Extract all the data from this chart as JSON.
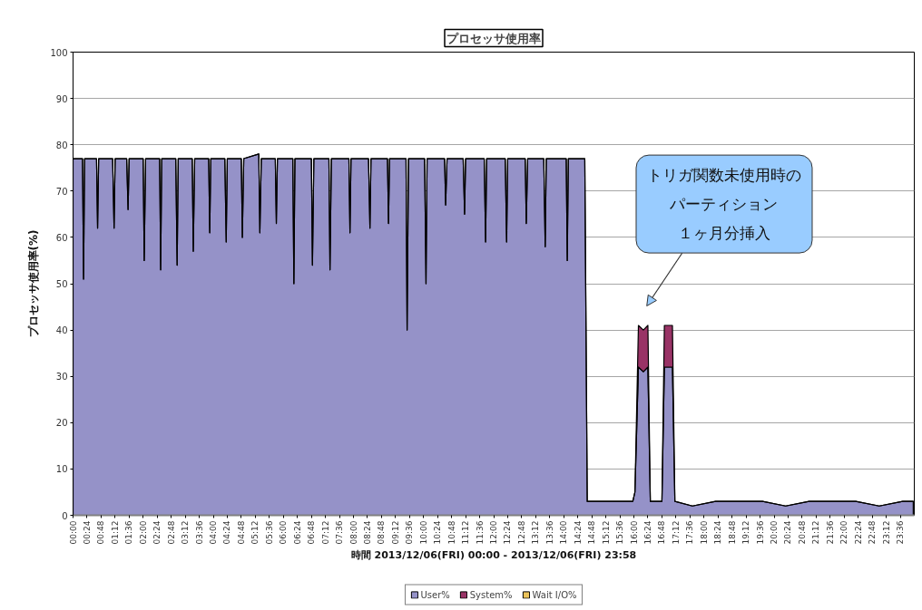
{
  "chart_data": {
    "type": "area",
    "stacked": true,
    "title": "プロセッサ使用率",
    "xlabel": "時間 2013/12/06(FRI) 00:00 - 2013/12/06(FRI) 23:58",
    "ylabel": "プロセッサ使用率(%)",
    "x": [
      0,
      0.27,
      0.3,
      0.33,
      0.67,
      0.7,
      0.73,
      1.13,
      1.17,
      1.2,
      1.53,
      1.57,
      1.6,
      2,
      2.03,
      2.07,
      2.47,
      2.5,
      2.53,
      2.93,
      2.97,
      3,
      3.4,
      3.43,
      3.47,
      3.87,
      3.9,
      3.93,
      4.33,
      4.37,
      4.4,
      4.8,
      4.83,
      4.87,
      5.3,
      5.33,
      5.37,
      5.77,
      5.8,
      5.83,
      6.27,
      6.3,
      6.33,
      6.8,
      6.83,
      6.87,
      7.3,
      7.33,
      7.37,
      7.87,
      7.9,
      7.93,
      8.43,
      8.47,
      8.5,
      8.97,
      9,
      9.03,
      9.5,
      9.53,
      9.57,
      10.03,
      10.07,
      10.1,
      10.6,
      10.63,
      10.67,
      11.13,
      11.17,
      11.2,
      11.73,
      11.77,
      11.8,
      12.33,
      12.37,
      12.4,
      12.9,
      12.93,
      12.97,
      13.43,
      13.47,
      13.5,
      14.07,
      14.1,
      14.13,
      14.6,
      14.67,
      15,
      15.5,
      15.97,
      16.03,
      16.13,
      16.27,
      16.4,
      16.47,
      16.63,
      16.8,
      16.87,
      16.98,
      17.1,
      17.17,
      17.67,
      18.33,
      19,
      19.67,
      20.33,
      21,
      21.67,
      22.33,
      23,
      23.67,
      23.97
    ],
    "series": [
      {
        "name": "User%",
        "color": "#9592c8",
        "values": [
          77,
          77,
          51,
          77,
          77,
          62,
          77,
          77,
          62,
          77,
          77,
          66,
          77,
          77,
          55,
          77,
          77,
          53,
          77,
          77,
          54,
          77,
          77,
          57,
          77,
          77,
          61,
          77,
          77,
          59,
          77,
          77,
          60,
          77,
          78,
          61,
          77,
          77,
          63,
          77,
          77,
          50,
          77,
          77,
          54,
          77,
          77,
          53,
          77,
          77,
          61,
          77,
          77,
          62,
          77,
          77,
          63,
          77,
          77,
          40,
          77,
          77,
          50,
          77,
          77,
          67,
          77,
          77,
          65,
          77,
          77,
          59,
          77,
          77,
          59,
          77,
          77,
          63,
          77,
          77,
          58,
          77,
          77,
          55,
          77,
          77,
          3,
          3,
          3,
          3,
          5,
          32,
          31,
          32,
          3,
          3,
          3,
          32,
          32,
          32,
          3,
          2,
          3,
          3,
          3,
          2,
          3,
          3,
          3,
          2,
          3,
          3
        ]
      },
      {
        "name": "System%",
        "color": "#993366",
        "values": [
          0,
          0,
          0,
          0,
          0,
          0,
          0,
          0,
          0,
          0,
          0,
          0,
          0,
          0,
          0,
          0,
          0,
          0,
          0,
          0,
          0,
          0,
          0,
          0,
          0,
          0,
          0,
          0,
          0,
          0,
          0,
          0,
          0,
          0,
          0,
          0,
          0,
          0,
          0,
          0,
          0,
          0,
          0,
          0,
          0,
          0,
          0,
          0,
          0,
          0,
          0,
          0,
          0,
          0,
          0,
          0,
          0,
          0,
          0,
          0,
          0,
          0,
          0,
          0,
          0,
          0,
          0,
          0,
          0,
          0,
          0,
          0,
          0,
          0,
          0,
          0,
          0,
          0,
          0,
          0,
          0,
          0,
          0,
          0,
          0,
          0,
          0,
          0,
          0,
          0,
          0,
          9,
          9,
          9,
          0,
          0,
          0,
          9,
          9,
          9,
          0,
          0,
          0,
          0,
          0,
          0,
          0,
          0,
          0,
          0,
          0,
          0
        ]
      },
      {
        "name": "Wait I/O%",
        "color": "#ebc35a",
        "values": [
          null,
          null,
          null,
          null,
          null,
          null,
          null,
          null,
          null,
          null,
          null,
          null,
          null,
          null,
          null,
          null,
          null,
          null,
          null,
          null,
          null,
          null,
          null,
          null,
          null,
          null,
          null,
          null,
          null,
          null,
          null,
          null,
          null,
          null,
          null,
          null,
          null,
          null,
          null,
          null,
          null,
          null,
          null,
          null,
          null,
          null,
          null,
          null,
          null,
          null,
          null,
          null,
          null,
          null,
          null,
          null,
          null,
          null,
          null,
          null,
          null,
          null,
          null,
          null,
          null,
          null,
          null,
          null,
          null,
          null,
          null,
          null,
          null,
          null,
          null,
          null,
          null,
          null,
          null,
          null,
          null,
          null,
          null,
          null,
          null,
          null,
          null,
          null,
          null,
          null,
          null,
          null,
          null,
          null,
          null,
          null,
          null,
          null,
          null,
          null,
          null,
          null,
          null,
          null,
          null,
          null,
          null,
          null,
          null,
          null,
          null,
          null
        ]
      }
    ],
    "xlim": [
      0,
      24
    ],
    "xticks": [
      {
        "value": 0,
        "label": "00:00"
      },
      {
        "value": 0.4,
        "label": "00:24"
      },
      {
        "value": 0.8,
        "label": "00:48"
      },
      {
        "value": 1.2,
        "label": "01:12"
      },
      {
        "value": 1.6,
        "label": "01:36"
      },
      {
        "value": 2,
        "label": "02:00"
      },
      {
        "value": 2.4,
        "label": "02:24"
      },
      {
        "value": 2.8,
        "label": "02:48"
      },
      {
        "value": 3.2,
        "label": "03:12"
      },
      {
        "value": 3.6,
        "label": "03:36"
      },
      {
        "value": 4,
        "label": "04:00"
      },
      {
        "value": 4.4,
        "label": "04:24"
      },
      {
        "value": 4.8,
        "label": "04:48"
      },
      {
        "value": 5.2,
        "label": "05:12"
      },
      {
        "value": 5.6,
        "label": "05:36"
      },
      {
        "value": 6,
        "label": "06:00"
      },
      {
        "value": 6.4,
        "label": "06:24"
      },
      {
        "value": 6.8,
        "label": "06:48"
      },
      {
        "value": 7.2,
        "label": "07:12"
      },
      {
        "value": 7.6,
        "label": "07:36"
      },
      {
        "value": 8,
        "label": "08:00"
      },
      {
        "value": 8.4,
        "label": "08:24"
      },
      {
        "value": 8.8,
        "label": "08:48"
      },
      {
        "value": 9.2,
        "label": "09:12"
      },
      {
        "value": 9.6,
        "label": "09:36"
      },
      {
        "value": 10,
        "label": "10:00"
      },
      {
        "value": 10.4,
        "label": "10:24"
      },
      {
        "value": 10.8,
        "label": "10:48"
      },
      {
        "value": 11.2,
        "label": "11:12"
      },
      {
        "value": 11.6,
        "label": "11:36"
      },
      {
        "value": 12,
        "label": "12:00"
      },
      {
        "value": 12.4,
        "label": "12:24"
      },
      {
        "value": 12.8,
        "label": "12:48"
      },
      {
        "value": 13.2,
        "label": "13:12"
      },
      {
        "value": 13.6,
        "label": "13:36"
      },
      {
        "value": 14,
        "label": "14:00"
      },
      {
        "value": 14.4,
        "label": "14:24"
      },
      {
        "value": 14.8,
        "label": "14:48"
      },
      {
        "value": 15.2,
        "label": "15:12"
      },
      {
        "value": 15.6,
        "label": "15:36"
      },
      {
        "value": 16,
        "label": "16:00"
      },
      {
        "value": 16.4,
        "label": "16:24"
      },
      {
        "value": 16.8,
        "label": "16:48"
      },
      {
        "value": 17.2,
        "label": "17:12"
      },
      {
        "value": 17.6,
        "label": "17:36"
      },
      {
        "value": 18,
        "label": "18:00"
      },
      {
        "value": 18.4,
        "label": "18:24"
      },
      {
        "value": 18.8,
        "label": "18:48"
      },
      {
        "value": 19.2,
        "label": "19:12"
      },
      {
        "value": 19.6,
        "label": "19:36"
      },
      {
        "value": 20,
        "label": "20:00"
      },
      {
        "value": 20.4,
        "label": "20:24"
      },
      {
        "value": 20.8,
        "label": "20:48"
      },
      {
        "value": 21.2,
        "label": "21:12"
      },
      {
        "value": 21.6,
        "label": "21:36"
      },
      {
        "value": 22,
        "label": "22:00"
      },
      {
        "value": 22.4,
        "label": "22:24"
      },
      {
        "value": 22.8,
        "label": "22:48"
      },
      {
        "value": 23.2,
        "label": "23:12"
      },
      {
        "value": 23.6,
        "label": "23:36"
      }
    ],
    "ylim": [
      0,
      100
    ],
    "yticks": [
      0,
      10,
      20,
      30,
      40,
      50,
      60,
      70,
      80,
      90,
      100
    ],
    "grid": "y",
    "legend": "bottom",
    "annotations": [
      "トリガ関数未使用時のパーティション１ヶ月分挿入"
    ]
  }
}
